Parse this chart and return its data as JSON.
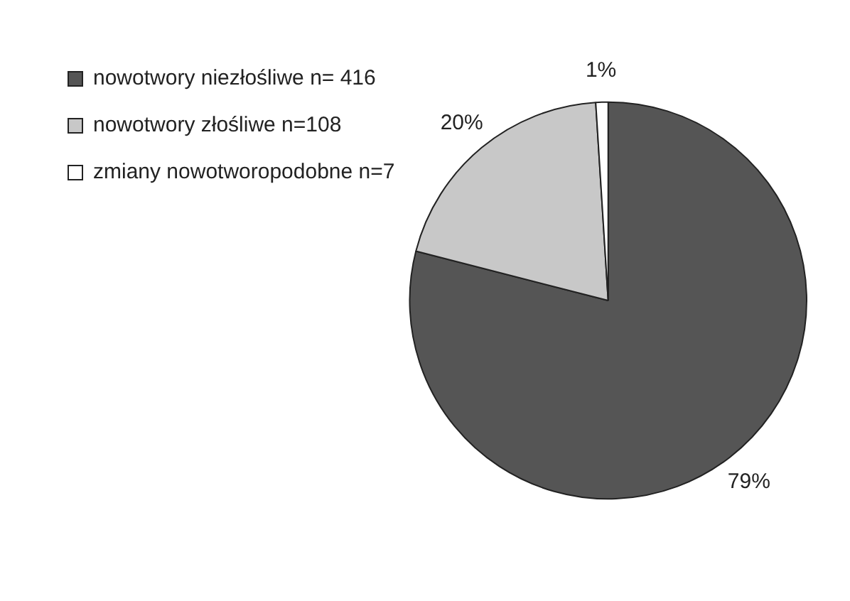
{
  "chart_data": {
    "type": "pie",
    "categories": [
      "nowotwory niezłośliwe n= 416",
      "nowotwory złośliwe n=108",
      "zmiany nowotworopodobne n=7"
    ],
    "values": [
      79,
      20,
      1
    ],
    "colors": [
      "#555555",
      "#c8c8c8",
      "#ffffff"
    ],
    "value_labels": [
      "79%",
      "20%",
      "1%"
    ],
    "legend": "left"
  }
}
